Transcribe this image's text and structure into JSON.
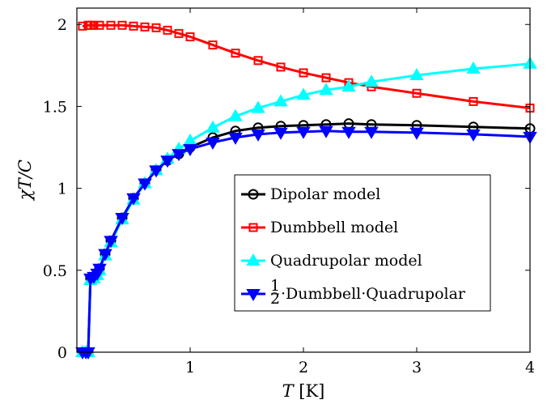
{
  "chart_data": {
    "type": "line",
    "xlabel": "T [K]",
    "xlabel_italic": "T",
    "xlabel_unit": " [K]",
    "ylabel": "χT/C",
    "xlim": [
      0,
      4
    ],
    "ylim": [
      0,
      2.1
    ],
    "xticks": [
      1,
      2,
      3,
      4
    ],
    "xtick_labels": [
      "1",
      "2",
      "3",
      "4"
    ],
    "yticks": [
      0,
      0.5,
      1,
      1.5,
      2
    ],
    "ytick_labels": [
      "0",
      "0.5",
      "1",
      "1.5",
      "2"
    ],
    "grid": false,
    "legend_position": "center-right",
    "series": [
      {
        "name": "Dipolar model",
        "color": "#000000",
        "marker": "circle",
        "x": [
          0.05,
          0.08,
          0.1,
          0.12,
          0.15,
          0.18,
          0.2,
          0.25,
          0.3,
          0.4,
          0.5,
          0.6,
          0.7,
          0.8,
          0.9,
          1.0,
          1.2,
          1.4,
          1.6,
          1.8,
          2.0,
          2.2,
          2.4,
          2.6,
          3.0,
          3.5,
          4.0
        ],
        "values": [
          0,
          0,
          0,
          0.45,
          0.46,
          0.48,
          0.51,
          0.6,
          0.68,
          0.82,
          0.94,
          1.03,
          1.11,
          1.17,
          1.21,
          1.25,
          1.31,
          1.35,
          1.37,
          1.38,
          1.385,
          1.39,
          1.395,
          1.39,
          1.385,
          1.375,
          1.365
        ]
      },
      {
        "name": "Dumbbell model",
        "color": "#ff0000",
        "marker": "square",
        "x": [
          0.05,
          0.1,
          0.12,
          0.15,
          0.2,
          0.3,
          0.4,
          0.5,
          0.6,
          0.7,
          0.8,
          0.9,
          1.0,
          1.2,
          1.4,
          1.6,
          1.8,
          2.0,
          2.2,
          2.4,
          2.6,
          3.0,
          3.5,
          4.0
        ],
        "values": [
          1.99,
          1.995,
          1.995,
          1.995,
          1.995,
          1.995,
          1.995,
          1.99,
          1.985,
          1.98,
          1.965,
          1.945,
          1.925,
          1.875,
          1.825,
          1.78,
          1.74,
          1.705,
          1.675,
          1.645,
          1.62,
          1.58,
          1.53,
          1.49
        ]
      },
      {
        "name": "Quadrupolar model",
        "color": "#00ffff",
        "marker": "triangle-up",
        "x": [
          0.05,
          0.08,
          0.1,
          0.12,
          0.15,
          0.18,
          0.2,
          0.25,
          0.3,
          0.4,
          0.5,
          0.6,
          0.7,
          0.8,
          0.9,
          1.0,
          1.2,
          1.4,
          1.6,
          1.8,
          2.0,
          2.2,
          2.4,
          2.6,
          3.0,
          3.5,
          4.0
        ],
        "values": [
          0,
          0,
          0,
          0.44,
          0.45,
          0.47,
          0.5,
          0.59,
          0.67,
          0.81,
          0.93,
          1.03,
          1.11,
          1.18,
          1.24,
          1.29,
          1.37,
          1.44,
          1.49,
          1.53,
          1.57,
          1.6,
          1.62,
          1.65,
          1.69,
          1.73,
          1.76
        ]
      },
      {
        "name": "½·Dumbbell·Quadrupolar",
        "color": "#0000ff",
        "marker": "triangle-down",
        "x": [
          0.05,
          0.08,
          0.1,
          0.12,
          0.15,
          0.18,
          0.2,
          0.25,
          0.3,
          0.4,
          0.5,
          0.6,
          0.7,
          0.8,
          0.9,
          1.0,
          1.2,
          1.4,
          1.6,
          1.8,
          2.0,
          2.2,
          2.4,
          2.6,
          3.0,
          3.5,
          4.0
        ],
        "values": [
          0,
          0,
          0,
          0.45,
          0.46,
          0.48,
          0.51,
          0.6,
          0.68,
          0.82,
          0.94,
          1.03,
          1.11,
          1.17,
          1.21,
          1.24,
          1.28,
          1.31,
          1.33,
          1.34,
          1.345,
          1.35,
          1.345,
          1.345,
          1.34,
          1.33,
          1.315
        ]
      }
    ],
    "legend": {
      "entries": [
        {
          "label": "Dipolar model"
        },
        {
          "label": "Dumbbell model"
        },
        {
          "label": "Quadrupolar model"
        },
        {
          "frac_num": "1",
          "frac_den": "2",
          "label": "·Dumbbell·Quadrupolar"
        }
      ]
    }
  }
}
